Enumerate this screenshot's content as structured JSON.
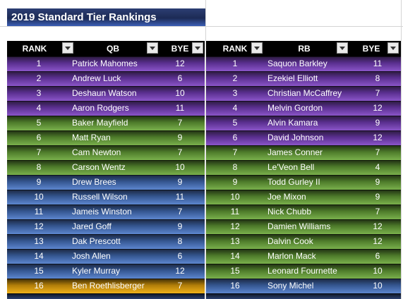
{
  "title": "2019 Standard Tier Rankings",
  "tier_colors": {
    "purple": "#5a2f8f",
    "green": "#4d7a2a",
    "blue": "#34558f",
    "gold": "#b07d09",
    "navy": "#1c2a48"
  },
  "qb_table": {
    "headers": {
      "rank": "RANK",
      "player": "QB",
      "bye": "BYE"
    },
    "rows": [
      {
        "rank": "1",
        "player": "Patrick Mahomes",
        "bye": "12",
        "tier": "purple"
      },
      {
        "rank": "2",
        "player": "Andrew Luck",
        "bye": "6",
        "tier": "purple"
      },
      {
        "rank": "3",
        "player": "Deshaun Watson",
        "bye": "10",
        "tier": "purple"
      },
      {
        "rank": "4",
        "player": "Aaron Rodgers",
        "bye": "11",
        "tier": "purple"
      },
      {
        "rank": "5",
        "player": "Baker Mayfield",
        "bye": "7",
        "tier": "green"
      },
      {
        "rank": "6",
        "player": "Matt Ryan",
        "bye": "9",
        "tier": "green"
      },
      {
        "rank": "7",
        "player": "Cam Newton",
        "bye": "7",
        "tier": "green"
      },
      {
        "rank": "8",
        "player": "Carson Wentz",
        "bye": "10",
        "tier": "green"
      },
      {
        "rank": "9",
        "player": "Drew Brees",
        "bye": "9",
        "tier": "blue"
      },
      {
        "rank": "10",
        "player": "Russell Wilson",
        "bye": "11",
        "tier": "blue"
      },
      {
        "rank": "11",
        "player": "Jameis Winston",
        "bye": "7",
        "tier": "blue"
      },
      {
        "rank": "12",
        "player": "Jared Goff",
        "bye": "9",
        "tier": "blue"
      },
      {
        "rank": "13",
        "player": "Dak Prescott",
        "bye": "8",
        "tier": "blue"
      },
      {
        "rank": "14",
        "player": "Josh Allen",
        "bye": "6",
        "tier": "blue"
      },
      {
        "rank": "15",
        "player": "Kyler Murray",
        "bye": "12",
        "tier": "blue"
      },
      {
        "rank": "16",
        "player": "Ben Roethlisberger",
        "bye": "7",
        "tier": "gold"
      }
    ]
  },
  "rb_table": {
    "headers": {
      "rank": "RANK",
      "player": "RB",
      "bye": "BYE"
    },
    "rows": [
      {
        "rank": "1",
        "player": "Saquon Barkley",
        "bye": "11",
        "tier": "purple"
      },
      {
        "rank": "2",
        "player": "Ezekiel Elliott",
        "bye": "8",
        "tier": "purple"
      },
      {
        "rank": "3",
        "player": "Christian McCaffrey",
        "bye": "7",
        "tier": "purple"
      },
      {
        "rank": "4",
        "player": "Melvin Gordon",
        "bye": "12",
        "tier": "purple"
      },
      {
        "rank": "5",
        "player": "Alvin Kamara",
        "bye": "9",
        "tier": "purple"
      },
      {
        "rank": "6",
        "player": "David Johnson",
        "bye": "12",
        "tier": "purple"
      },
      {
        "rank": "7",
        "player": "James Conner",
        "bye": "7",
        "tier": "green"
      },
      {
        "rank": "8",
        "player": "Le'Veon Bell",
        "bye": "4",
        "tier": "green"
      },
      {
        "rank": "9",
        "player": "Todd Gurley II",
        "bye": "9",
        "tier": "green"
      },
      {
        "rank": "10",
        "player": "Joe Mixon",
        "bye": "9",
        "tier": "green"
      },
      {
        "rank": "11",
        "player": "Nick Chubb",
        "bye": "7",
        "tier": "green"
      },
      {
        "rank": "12",
        "player": "Damien Williams",
        "bye": "12",
        "tier": "green"
      },
      {
        "rank": "13",
        "player": "Dalvin Cook",
        "bye": "12",
        "tier": "green"
      },
      {
        "rank": "14",
        "player": "Marlon Mack",
        "bye": "6",
        "tier": "green"
      },
      {
        "rank": "15",
        "player": "Leonard Fournette",
        "bye": "10",
        "tier": "green"
      },
      {
        "rank": "16",
        "player": "Sony Michel",
        "bye": "10",
        "tier": "blue"
      }
    ]
  }
}
